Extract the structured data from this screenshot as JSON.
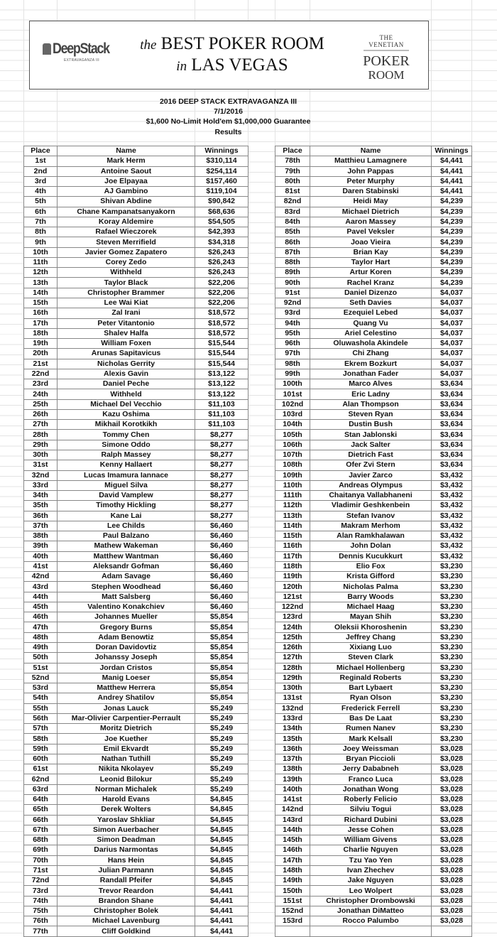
{
  "banner": {
    "left_logo": {
      "main": "DeepStack",
      "sub": "EXTRAVAGANZA III"
    },
    "slogan_line1_prefix": "the",
    "slogan_line1": "BEST POKER ROOM",
    "slogan_line2_prefix": "in",
    "slogan_line2": "LAS VEGAS",
    "right_logo": {
      "top": "THE VENETIAN",
      "line1": "POKER",
      "line2": "ROOM"
    }
  },
  "title": "2016 DEEP STACK EXTRAVAGANZA III",
  "date": "7/1/2016",
  "event": "$1,600 No-Limit Hold'em $1,000,000 Guarantee",
  "subtitle": "Results",
  "columns": [
    "Place",
    "Name",
    "Winnings"
  ],
  "left_rows": [
    [
      "1st",
      "Mark Herm",
      "$310,114"
    ],
    [
      "2nd",
      "Antoine Saout",
      "$254,114"
    ],
    [
      "3rd",
      "Joe Elpayaa",
      "$157,460"
    ],
    [
      "4th",
      "AJ Gambino",
      "$119,104"
    ],
    [
      "5th",
      "Shivan Abdine",
      "$90,842"
    ],
    [
      "6th",
      "Chane Kampanatsanyakorn",
      "$68,636"
    ],
    [
      "7th",
      "Koray Aldemire",
      "$54,505"
    ],
    [
      "8th",
      "Rafael Wieczorek",
      "$42,393"
    ],
    [
      "9th",
      "Steven Merrifield",
      "$34,318"
    ],
    [
      "10th",
      "Javier Gomez Zapatero",
      "$26,243"
    ],
    [
      "11th",
      "Corey Zedo",
      "$26,243"
    ],
    [
      "12th",
      "Withheld",
      "$26,243"
    ],
    [
      "13th",
      "Taylor Black",
      "$22,206"
    ],
    [
      "14th",
      "Christopher Brammer",
      "$22,206"
    ],
    [
      "15th",
      "Lee Wai Kiat",
      "$22,206"
    ],
    [
      "16th",
      "Zal Irani",
      "$18,572"
    ],
    [
      "17th",
      "Peter Vitantonio",
      "$18,572"
    ],
    [
      "18th",
      "Shalev Halfa",
      "$18,572"
    ],
    [
      "19th",
      "William Foxen",
      "$15,544"
    ],
    [
      "20th",
      "Arunas Sapitavicus",
      "$15,544"
    ],
    [
      "21st",
      "Nicholas Gerrity",
      "$15,544"
    ],
    [
      "22nd",
      "Alexis Gavin",
      "$13,122"
    ],
    [
      "23rd",
      "Daniel Peche",
      "$13,122"
    ],
    [
      "24th",
      "Withheld",
      "$13,122"
    ],
    [
      "25th",
      "Michael Del Vecchio",
      "$11,103"
    ],
    [
      "26th",
      "Kazu Oshima",
      "$11,103"
    ],
    [
      "27th",
      "Mikhail Korotkikh",
      "$11,103"
    ],
    [
      "28th",
      "Tommy Chen",
      "$8,277"
    ],
    [
      "29th",
      "Simone Oddo",
      "$8,277"
    ],
    [
      "30th",
      "Ralph Massey",
      "$8,277"
    ],
    [
      "31st",
      "Kenny Hallaert",
      "$8,277"
    ],
    [
      "32nd",
      "Lucas Imamura Iannace",
      "$8,277"
    ],
    [
      "33rd",
      "Miguel Silva",
      "$8,277"
    ],
    [
      "34th",
      "David Vamplew",
      "$8,277"
    ],
    [
      "35th",
      "Timothy Hickling",
      "$8,277"
    ],
    [
      "36th",
      "Kane Lai",
      "$8,277"
    ],
    [
      "37th",
      "Lee Childs",
      "$6,460"
    ],
    [
      "38th",
      "Paul Balzano",
      "$6,460"
    ],
    [
      "39th",
      "Mathew Wakeman",
      "$6,460"
    ],
    [
      "40th",
      "Matthew Wantman",
      "$6,460"
    ],
    [
      "41st",
      "Aleksandr Gofman",
      "$6,460"
    ],
    [
      "42nd",
      "Adam Savage",
      "$6,460"
    ],
    [
      "43rd",
      "Stephen Woodhead",
      "$6,460"
    ],
    [
      "44th",
      "Matt Salsberg",
      "$6,460"
    ],
    [
      "45th",
      "Valentino Konakchiev",
      "$6,460"
    ],
    [
      "46th",
      "Johannes Mueller",
      "$5,854"
    ],
    [
      "47th",
      "Gregory Burns",
      "$5,854"
    ],
    [
      "48th",
      "Adam Benowtiz",
      "$5,854"
    ],
    [
      "49th",
      "Doran Davidovtiz",
      "$5,854"
    ],
    [
      "50th",
      "Johanssy Joseph",
      "$5,854"
    ],
    [
      "51st",
      "Jordan Cristos",
      "$5,854"
    ],
    [
      "52nd",
      "Manig Loeser",
      "$5,854"
    ],
    [
      "53rd",
      "Matthew Herrera",
      "$5,854"
    ],
    [
      "54th",
      "Andrey Shatilov",
      "$5,854"
    ],
    [
      "55th",
      "Jonas Lauck",
      "$5,249"
    ],
    [
      "56th",
      "Mar-Olivier Carpentier-Perrault",
      "$5,249"
    ],
    [
      "57th",
      "Moritz Dietrich",
      "$5,249"
    ],
    [
      "58th",
      "Joe Kuether",
      "$5,249"
    ],
    [
      "59th",
      "Emil Ekvardt",
      "$5,249"
    ],
    [
      "60th",
      "Nathan Tuthill",
      "$5,249"
    ],
    [
      "61st",
      "Nikita Nkolayev",
      "$5,249"
    ],
    [
      "62nd",
      "Leonid Bilokur",
      "$5,249"
    ],
    [
      "63rd",
      "Norman Michalek",
      "$5,249"
    ],
    [
      "64th",
      "Harold Evans",
      "$4,845"
    ],
    [
      "65th",
      "Derek Wolters",
      "$4,845"
    ],
    [
      "66th",
      "Yaroslav Shkliar",
      "$4,845"
    ],
    [
      "67th",
      "Simon Auerbacher",
      "$4,845"
    ],
    [
      "68th",
      "Simon Deadman",
      "$4,845"
    ],
    [
      "69th",
      "Darius Narmontas",
      "$4,845"
    ],
    [
      "70th",
      "Hans Hein",
      "$4,845"
    ],
    [
      "71st",
      "Julian Parmann",
      "$4,845"
    ],
    [
      "72nd",
      "Randall Pfeifer",
      "$4,845"
    ],
    [
      "73rd",
      "Trevor Reardon",
      "$4,441"
    ],
    [
      "74th",
      "Brandon Shane",
      "$4,441"
    ],
    [
      "75th",
      "Christopher Bolek",
      "$4,441"
    ],
    [
      "76th",
      "Michael Lavenburg",
      "$4,441"
    ],
    [
      "77th",
      "Cliff Goldkind",
      "$4,441"
    ]
  ],
  "right_rows": [
    [
      "78th",
      "Matthieu Lamagnere",
      "$4,441"
    ],
    [
      "79th",
      "John Pappas",
      "$4,441"
    ],
    [
      "80th",
      "Peter Murphy",
      "$4,441"
    ],
    [
      "81st",
      "Daren Stabinski",
      "$4,441"
    ],
    [
      "82nd",
      "Heidi May",
      "$4,239"
    ],
    [
      "83rd",
      "Michael Dietrich",
      "$4,239"
    ],
    [
      "84th",
      "Aaron Massey",
      "$4,239"
    ],
    [
      "85th",
      "Pavel Veksler",
      "$4,239"
    ],
    [
      "86th",
      "Joao Vieira",
      "$4,239"
    ],
    [
      "87th",
      "Brian Kay",
      "$4,239"
    ],
    [
      "88th",
      "Taylor Hart",
      "$4,239"
    ],
    [
      "89th",
      "Artur Koren",
      "$4,239"
    ],
    [
      "90th",
      "Rachel Kranz",
      "$4,239"
    ],
    [
      "91st",
      "Daniel Dizenzo",
      "$4,037"
    ],
    [
      "92nd",
      "Seth Davies",
      "$4,037"
    ],
    [
      "93rd",
      "Ezequiel Lebed",
      "$4,037"
    ],
    [
      "94th",
      "Quang Vu",
      "$4,037"
    ],
    [
      "95th",
      "Ariel Celestino",
      "$4,037"
    ],
    [
      "96th",
      "Oluwashola Akindele",
      "$4,037"
    ],
    [
      "97th",
      "Chi Zhang",
      "$4,037"
    ],
    [
      "98th",
      "Ekrem Bozkurt",
      "$4,037"
    ],
    [
      "99th",
      "Jonathan Fader",
      "$4,037"
    ],
    [
      "100th",
      "Marco Alves",
      "$3,634"
    ],
    [
      "101st",
      "Eric Ladny",
      "$3,634"
    ],
    [
      "102nd",
      "Alan Thompson",
      "$3,634"
    ],
    [
      "103rd",
      "Steven Ryan",
      "$3,634"
    ],
    [
      "104th",
      "Dustin Bush",
      "$3,634"
    ],
    [
      "105th",
      "Stan Jablonski",
      "$3,634"
    ],
    [
      "106th",
      "Jack Salter",
      "$3,634"
    ],
    [
      "107th",
      "Dietrich Fast",
      "$3,634"
    ],
    [
      "108th",
      "Ofer Zvi Stern",
      "$3,634"
    ],
    [
      "109th",
      "Javier Zarco",
      "$3,432"
    ],
    [
      "110th",
      "Andreas Olympus",
      "$3,432"
    ],
    [
      "111th",
      "Chaitanya Vallabhaneni",
      "$3,432"
    ],
    [
      "112th",
      "Vladimir Geshkenbein",
      "$3,432"
    ],
    [
      "113th",
      "Stefan Ivanov",
      "$3,432"
    ],
    [
      "114th",
      "Makram Merhom",
      "$3,432"
    ],
    [
      "115th",
      "Alan Ramkhalawan",
      "$3,432"
    ],
    [
      "116th",
      "John Dolan",
      "$3,432"
    ],
    [
      "117th",
      "Dennis Kucukkurt",
      "$3,432"
    ],
    [
      "118th",
      "Elio Fox",
      "$3,230"
    ],
    [
      "119th",
      "Krista Gifford",
      "$3,230"
    ],
    [
      "120th",
      "Nicholas Palma",
      "$3,230"
    ],
    [
      "121st",
      "Barry Woods",
      "$3,230"
    ],
    [
      "122nd",
      "Michael Haag",
      "$3,230"
    ],
    [
      "123rd",
      "Mayan Shih",
      "$3,230"
    ],
    [
      "124th",
      "Oleksii Khoroshenin",
      "$3,230"
    ],
    [
      "125th",
      "Jeffrey Chang",
      "$3,230"
    ],
    [
      "126th",
      "Xixiang Luo",
      "$3,230"
    ],
    [
      "127th",
      "Steven Clark",
      "$3,230"
    ],
    [
      "128th",
      "Michael Hollenberg",
      "$3,230"
    ],
    [
      "129th",
      "Reginald Roberts",
      "$3,230"
    ],
    [
      "130th",
      "Bart Lybaert",
      "$3,230"
    ],
    [
      "131st",
      "Ryan Olson",
      "$3,230"
    ],
    [
      "132nd",
      "Frederick Ferrell",
      "$3,230"
    ],
    [
      "133rd",
      "Bas De Laat",
      "$3,230"
    ],
    [
      "134th",
      "Rumen Nanev",
      "$3,230"
    ],
    [
      "135th",
      "Mark Kelsall",
      "$3,230"
    ],
    [
      "136th",
      "Joey Weissman",
      "$3,028"
    ],
    [
      "137th",
      "Bryan Piccioli",
      "$3,028"
    ],
    [
      "138th",
      "Jerry Dababneh",
      "$3,028"
    ],
    [
      "139th",
      "Franco Luca",
      "$3,028"
    ],
    [
      "140th",
      "Jonathan Wong",
      "$3,028"
    ],
    [
      "141st",
      "Roberly Felicio",
      "$3,028"
    ],
    [
      "142nd",
      "Silviu Togui",
      "$3,028"
    ],
    [
      "143rd",
      "Richard Dubini",
      "$3,028"
    ],
    [
      "144th",
      "Jesse Cohen",
      "$3,028"
    ],
    [
      "145th",
      "William Givens",
      "$3,028"
    ],
    [
      "146th",
      "Charlie Nguyen",
      "$3,028"
    ],
    [
      "147th",
      "Tzu Yao Yen",
      "$3,028"
    ],
    [
      "148th",
      "Ivan Zhechev",
      "$3,028"
    ],
    [
      "149th",
      "Jake Nguyen",
      "$3,028"
    ],
    [
      "150th",
      "Leo Wolpert",
      "$3,028"
    ],
    [
      "151st",
      "Christopher Drombowski",
      "$3,028"
    ],
    [
      "152nd",
      "Jonathan DiMatteo",
      "$3,028"
    ],
    [
      "153rd",
      "Rocco Palumbo",
      "$3,028"
    ],
    [
      "",
      "",
      ""
    ]
  ]
}
